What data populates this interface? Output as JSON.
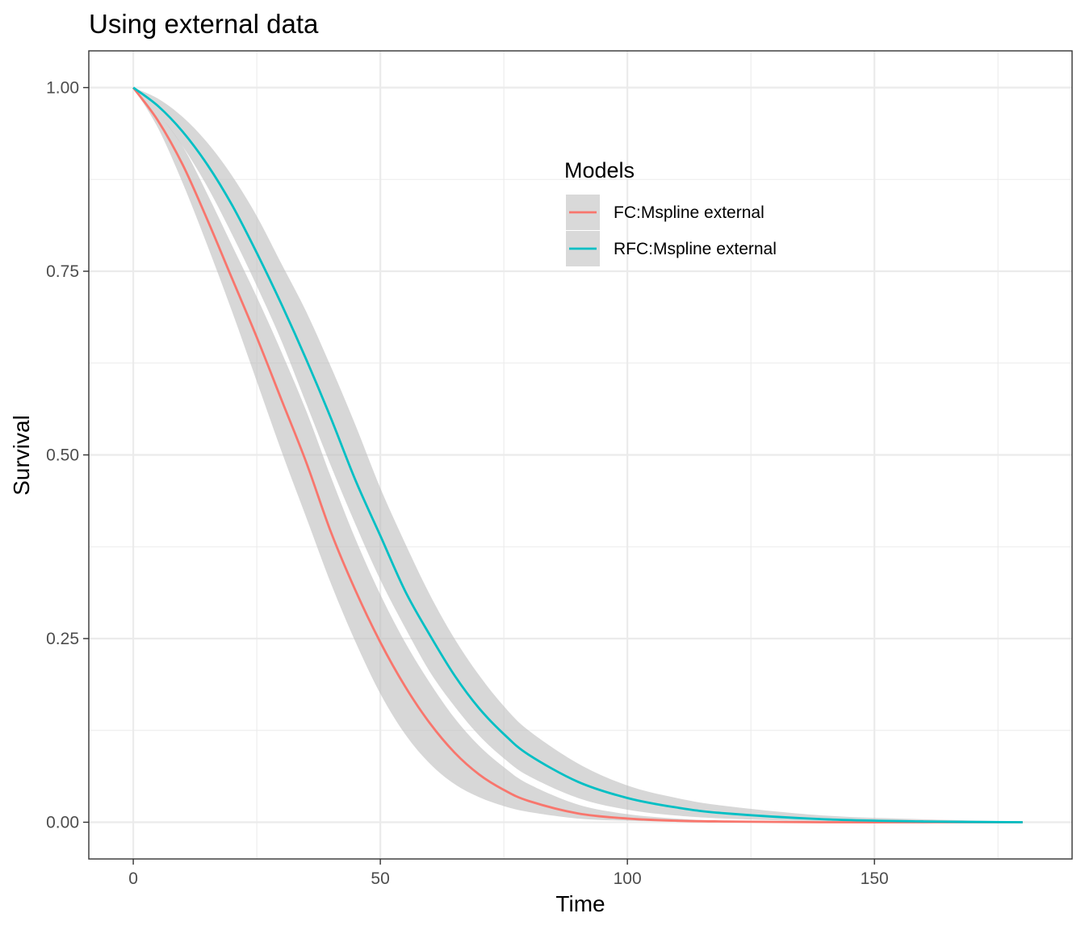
{
  "chart_data": {
    "type": "line",
    "title": "Using external data",
    "xlabel": "Time",
    "ylabel": "Survival",
    "xlim": [
      -9,
      190
    ],
    "ylim": [
      -0.05,
      1.05
    ],
    "x_ticks": [
      0,
      50,
      100,
      150
    ],
    "x_tick_labels": [
      "0",
      "50",
      "100",
      "150"
    ],
    "y_ticks": [
      0,
      0.25,
      0.5,
      0.75,
      1
    ],
    "y_tick_labels": [
      "0.00",
      "0.25",
      "0.50",
      "0.75",
      "1.00"
    ],
    "x_minor_ticks": [
      25,
      75,
      125,
      175
    ],
    "y_minor_ticks": [
      0.125,
      0.375,
      0.625,
      0.875
    ],
    "grid": true,
    "legend": {
      "title": "Models",
      "position": "inside-top-right"
    },
    "series": [
      {
        "name": "FC:Mspline external",
        "color": "#F8766D",
        "ribbon_color": "#bdbdbd",
        "x": [
          0,
          5,
          10,
          15,
          20,
          25,
          30,
          35,
          40,
          45,
          50,
          55,
          60,
          65,
          70,
          75,
          80,
          90,
          100,
          110,
          120,
          140,
          160,
          180
        ],
        "y": [
          1.0,
          0.955,
          0.895,
          0.82,
          0.74,
          0.66,
          0.575,
          0.49,
          0.395,
          0.315,
          0.245,
          0.185,
          0.135,
          0.095,
          0.065,
          0.044,
          0.029,
          0.012,
          0.005,
          0.002,
          0.001,
          0.0,
          0.0,
          0.0
        ],
        "lower": [
          1.0,
          0.945,
          0.87,
          0.785,
          0.695,
          0.6,
          0.505,
          0.415,
          0.325,
          0.245,
          0.175,
          0.12,
          0.08,
          0.052,
          0.034,
          0.022,
          0.014,
          0.005,
          0.002,
          0.001,
          0.0,
          0.0,
          0.0,
          0.0
        ],
        "upper": [
          1.0,
          0.965,
          0.92,
          0.855,
          0.785,
          0.715,
          0.64,
          0.56,
          0.47,
          0.385,
          0.31,
          0.245,
          0.19,
          0.142,
          0.104,
          0.075,
          0.052,
          0.024,
          0.011,
          0.005,
          0.002,
          0.0,
          0.0,
          0.0
        ]
      },
      {
        "name": "RFC:Mspline external",
        "color": "#00BFC4",
        "ribbon_color": "#bdbdbd",
        "x": [
          0,
          5,
          10,
          15,
          20,
          25,
          30,
          35,
          40,
          45,
          50,
          55,
          60,
          65,
          70,
          75,
          80,
          90,
          100,
          110,
          120,
          140,
          160,
          180
        ],
        "y": [
          1.0,
          0.975,
          0.94,
          0.895,
          0.84,
          0.775,
          0.705,
          0.63,
          0.55,
          0.465,
          0.39,
          0.315,
          0.255,
          0.2,
          0.155,
          0.12,
          0.092,
          0.055,
          0.033,
          0.02,
          0.012,
          0.004,
          0.001,
          0.0
        ],
        "lower": [
          1.0,
          0.965,
          0.92,
          0.865,
          0.8,
          0.73,
          0.655,
          0.57,
          0.485,
          0.405,
          0.33,
          0.265,
          0.205,
          0.158,
          0.118,
          0.087,
          0.063,
          0.033,
          0.017,
          0.009,
          0.005,
          0.001,
          0.0,
          0.0
        ],
        "upper": [
          1.0,
          0.985,
          0.96,
          0.925,
          0.88,
          0.825,
          0.76,
          0.695,
          0.62,
          0.54,
          0.455,
          0.38,
          0.31,
          0.25,
          0.2,
          0.158,
          0.125,
          0.08,
          0.05,
          0.033,
          0.022,
          0.009,
          0.004,
          0.001
        ]
      }
    ]
  }
}
